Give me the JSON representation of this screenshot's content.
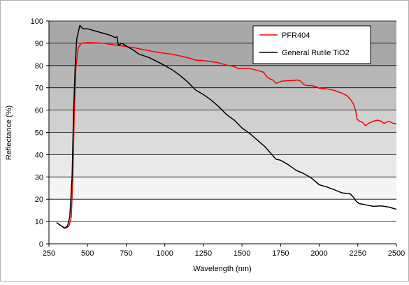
{
  "chart_data": {
    "type": "line",
    "title": "",
    "xlabel": "Wavelength (nm)",
    "ylabel": "Reflectance (%)",
    "xlim": [
      250,
      2500
    ],
    "ylim": [
      0,
      100
    ],
    "x_ticks": [
      250,
      500,
      750,
      1000,
      1250,
      1500,
      1750,
      2000,
      2250,
      2500
    ],
    "y_ticks": [
      0,
      10,
      20,
      30,
      40,
      50,
      60,
      70,
      80,
      90,
      100
    ],
    "grid": true,
    "legend_position": "top-right",
    "series": [
      {
        "name": "PFR404",
        "color": "#ff0000",
        "points": [
          [
            300,
            9.5
          ],
          [
            330,
            8
          ],
          [
            360,
            7
          ],
          [
            380,
            8
          ],
          [
            395,
            12
          ],
          [
            405,
            30
          ],
          [
            415,
            60
          ],
          [
            425,
            80
          ],
          [
            440,
            88
          ],
          [
            460,
            90
          ],
          [
            500,
            90.3
          ],
          [
            550,
            90.2
          ],
          [
            600,
            90
          ],
          [
            650,
            89.5
          ],
          [
            700,
            89
          ],
          [
            750,
            88.5
          ],
          [
            800,
            88
          ],
          [
            850,
            87.3
          ],
          [
            900,
            86.6
          ],
          [
            950,
            86
          ],
          [
            1000,
            85.5
          ],
          [
            1050,
            85
          ],
          [
            1100,
            84.3
          ],
          [
            1150,
            83.5
          ],
          [
            1200,
            82.4
          ],
          [
            1250,
            82.2
          ],
          [
            1300,
            81.8
          ],
          [
            1350,
            81.2
          ],
          [
            1400,
            80.2
          ],
          [
            1450,
            79.5
          ],
          [
            1480,
            78.5
          ],
          [
            1520,
            78.8
          ],
          [
            1560,
            78.5
          ],
          [
            1600,
            77.8
          ],
          [
            1640,
            77
          ],
          [
            1660,
            75
          ],
          [
            1680,
            74
          ],
          [
            1700,
            73.5
          ],
          [
            1720,
            72
          ],
          [
            1740,
            72.5
          ],
          [
            1760,
            73
          ],
          [
            1800,
            73.2
          ],
          [
            1830,
            73.3
          ],
          [
            1860,
            73.5
          ],
          [
            1880,
            73
          ],
          [
            1900,
            71.5
          ],
          [
            1920,
            71
          ],
          [
            1950,
            71
          ],
          [
            1980,
            70.5
          ],
          [
            2000,
            69.8
          ],
          [
            2050,
            69.5
          ],
          [
            2100,
            68.8
          ],
          [
            2150,
            67.5
          ],
          [
            2180,
            66.5
          ],
          [
            2200,
            65
          ],
          [
            2220,
            63
          ],
          [
            2235,
            60
          ],
          [
            2245,
            56
          ],
          [
            2260,
            55
          ],
          [
            2280,
            54.5
          ],
          [
            2300,
            53
          ],
          [
            2320,
            54
          ],
          [
            2350,
            55
          ],
          [
            2380,
            55.5
          ],
          [
            2400,
            55
          ],
          [
            2420,
            54
          ],
          [
            2450,
            55
          ],
          [
            2480,
            54
          ],
          [
            2500,
            54
          ]
        ]
      },
      {
        "name": "General Rutile TiO2",
        "color": "#000000",
        "points": [
          [
            300,
            9.5
          ],
          [
            330,
            8
          ],
          [
            350,
            7
          ],
          [
            370,
            8
          ],
          [
            385,
            12
          ],
          [
            400,
            30
          ],
          [
            410,
            60
          ],
          [
            420,
            80
          ],
          [
            430,
            92
          ],
          [
            440,
            95
          ],
          [
            450,
            98
          ],
          [
            470,
            96.5
          ],
          [
            500,
            96.5
          ],
          [
            550,
            95.5
          ],
          [
            600,
            94.5
          ],
          [
            650,
            93.5
          ],
          [
            680,
            92.5
          ],
          [
            690,
            93
          ],
          [
            700,
            89
          ],
          [
            720,
            90
          ],
          [
            750,
            88.8
          ],
          [
            800,
            86.8
          ],
          [
            830,
            85.2
          ],
          [
            900,
            83.5
          ],
          [
            950,
            81.8
          ],
          [
            1000,
            80
          ],
          [
            1050,
            78
          ],
          [
            1100,
            75.5
          ],
          [
            1150,
            72.5
          ],
          [
            1200,
            69
          ],
          [
            1250,
            67
          ],
          [
            1300,
            64.5
          ],
          [
            1350,
            61.5
          ],
          [
            1400,
            58
          ],
          [
            1450,
            55.5
          ],
          [
            1500,
            52
          ],
          [
            1550,
            49.5
          ],
          [
            1600,
            46.5
          ],
          [
            1650,
            43.5
          ],
          [
            1700,
            39.5
          ],
          [
            1720,
            38
          ],
          [
            1750,
            37.5
          ],
          [
            1800,
            35.5
          ],
          [
            1850,
            33
          ],
          [
            1900,
            31.5
          ],
          [
            1950,
            29.5
          ],
          [
            2000,
            26.5
          ],
          [
            2050,
            25.5
          ],
          [
            2100,
            24.2
          ],
          [
            2150,
            22.8
          ],
          [
            2200,
            22.5
          ],
          [
            2220,
            21
          ],
          [
            2240,
            19
          ],
          [
            2260,
            18
          ],
          [
            2280,
            17.8
          ],
          [
            2300,
            17.5
          ],
          [
            2350,
            16.8
          ],
          [
            2400,
            17
          ],
          [
            2450,
            16.5
          ],
          [
            2500,
            15.5
          ]
        ]
      }
    ]
  }
}
